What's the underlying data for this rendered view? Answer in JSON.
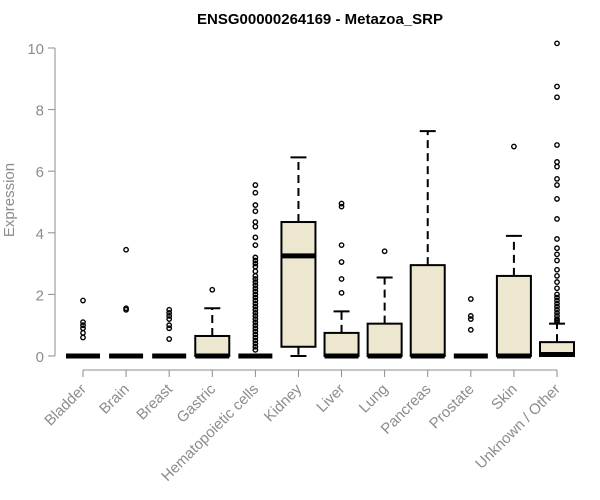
{
  "chart_data": {
    "type": "box",
    "title": "ENSG00000264169 - Metazoa_SRP",
    "xlabel": "",
    "ylabel": "Expression",
    "ylim": [
      0,
      10.3
    ],
    "yticks": [
      0,
      2,
      4,
      6,
      8,
      10
    ],
    "grid": false,
    "legend": "none",
    "colors": {
      "box_fill": "#ede7cf",
      "stroke": "#000000",
      "axis_text": "#8c8c8c",
      "title_text": "#000000"
    },
    "categories": [
      "Bladder",
      "Brain",
      "Breast",
      "Gastric",
      "Hematopoietic cells",
      "Kidney",
      "Liver",
      "Lung",
      "Pancreas",
      "Prostate",
      "Skin",
      "Unknown / Other"
    ],
    "boxes": [
      {
        "category": "Bladder",
        "q1": 0,
        "median": 0,
        "q3": 0,
        "whisker_low": 0,
        "whisker_high": 0,
        "outliers": [
          1.8,
          1.1,
          1.0,
          0.9,
          0.75,
          0.6
        ]
      },
      {
        "category": "Brain",
        "q1": 0,
        "median": 0,
        "q3": 0,
        "whisker_low": 0,
        "whisker_high": 0,
        "outliers": [
          3.45,
          1.55,
          1.5
        ]
      },
      {
        "category": "Breast",
        "q1": 0,
        "median": 0,
        "q3": 0,
        "whisker_low": 0,
        "whisker_high": 0,
        "outliers": [
          1.5,
          1.4,
          1.3,
          1.2,
          1.0,
          0.9,
          0.55
        ]
      },
      {
        "category": "Gastric",
        "q1": 0,
        "median": 0,
        "q3": 0.65,
        "whisker_low": 0,
        "whisker_high": 1.55,
        "outliers": [
          2.15
        ]
      },
      {
        "category": "Hematopoietic cells",
        "q1": 0,
        "median": 0,
        "q3": 0,
        "whisker_low": 0,
        "whisker_high": 0,
        "outliers": [
          5.55,
          5.3,
          4.9,
          4.7,
          4.35,
          4.2,
          3.85,
          3.6,
          3.2,
          3.1,
          3.0,
          2.9,
          2.75,
          2.6,
          2.5,
          2.4,
          2.3,
          2.2,
          2.1,
          2.0,
          1.9,
          1.8,
          1.7,
          1.6,
          1.5,
          1.4,
          1.3,
          1.2,
          1.1,
          1.0,
          0.9,
          0.8,
          0.7,
          0.6,
          0.5,
          0.4,
          0.3,
          0.2
        ]
      },
      {
        "category": "Kidney",
        "q1": 0.3,
        "median": 3.25,
        "q3": 4.35,
        "whisker_low": 0,
        "whisker_high": 6.45,
        "outliers": []
      },
      {
        "category": "Liver",
        "q1": 0,
        "median": 0,
        "q3": 0.75,
        "whisker_low": 0,
        "whisker_high": 1.45,
        "outliers": [
          4.95,
          4.85,
          3.6,
          3.05,
          2.5,
          2.05
        ]
      },
      {
        "category": "Lung",
        "q1": 0,
        "median": 0,
        "q3": 1.05,
        "whisker_low": 0,
        "whisker_high": 2.55,
        "outliers": [
          3.4
        ]
      },
      {
        "category": "Pancreas",
        "q1": 0,
        "median": 0,
        "q3": 2.95,
        "whisker_low": 0,
        "whisker_high": 7.3,
        "outliers": []
      },
      {
        "category": "Prostate",
        "q1": 0,
        "median": 0,
        "q3": 0,
        "whisker_low": 0,
        "whisker_high": 0,
        "outliers": [
          1.85,
          1.3,
          1.2,
          0.85
        ]
      },
      {
        "category": "Skin",
        "q1": 0,
        "median": 0,
        "q3": 2.6,
        "whisker_low": 0,
        "whisker_high": 3.9,
        "outliers": [
          6.8
        ]
      },
      {
        "category": "Unknown / Other",
        "q1": 0,
        "median": 0.05,
        "q3": 0.45,
        "whisker_low": 0,
        "whisker_high": 1.05,
        "outliers": [
          10.15,
          8.75,
          8.4,
          6.85,
          6.3,
          6.15,
          5.75,
          5.55,
          5.1,
          4.45,
          3.8,
          3.5,
          3.3,
          3.1,
          2.8,
          2.6,
          2.4,
          2.2,
          2.0,
          1.9,
          1.8,
          1.7,
          1.6,
          1.5,
          1.4,
          1.3,
          1.2,
          1.15,
          1.1
        ]
      }
    ]
  }
}
